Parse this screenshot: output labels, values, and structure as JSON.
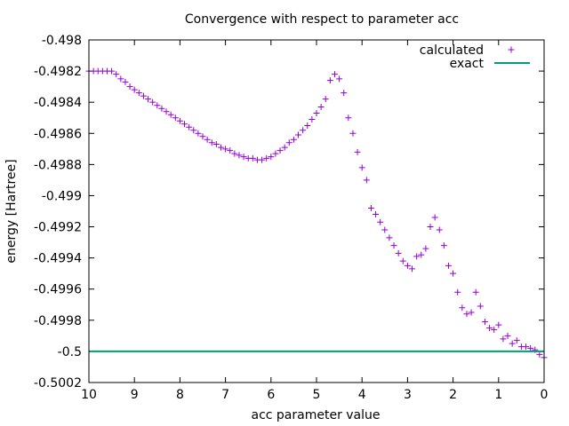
{
  "chart_data": {
    "type": "scatter",
    "title": "Convergence with respect to parameter acc",
    "xlabel": "acc parameter value",
    "ylabel": "energy [Hartree]",
    "xlim": [
      10,
      0
    ],
    "ylim": [
      -0.5002,
      -0.498
    ],
    "x_reversed": true,
    "x_ticks": [
      10,
      9,
      8,
      7,
      6,
      5,
      4,
      3,
      2,
      1,
      0
    ],
    "x_tick_labels": [
      "10",
      "9",
      "8",
      "7",
      "6",
      "5",
      "4",
      "3",
      "2",
      "1",
      "0"
    ],
    "y_ticks": [
      -0.498,
      -0.4982,
      -0.4984,
      -0.4986,
      -0.4988,
      -0.499,
      -0.4992,
      -0.4994,
      -0.4996,
      -0.4998,
      -0.5,
      -0.5002
    ],
    "y_tick_labels": [
      "-0.498",
      "-0.4982",
      "-0.4984",
      "-0.4986",
      "-0.4988",
      "-0.499",
      "-0.4992",
      "-0.4994",
      "-0.4996",
      "-0.4998",
      "-0.5",
      "-0.5002"
    ],
    "grid": false,
    "legend_position": "top-right",
    "series": [
      {
        "name": "calculated",
        "marker": "plus",
        "color": "#9400d3",
        "x": [
          10.0,
          9.9,
          9.8,
          9.7,
          9.6,
          9.5,
          9.4,
          9.3,
          9.2,
          9.1,
          9.0,
          8.9,
          8.8,
          8.7,
          8.6,
          8.5,
          8.4,
          8.3,
          8.2,
          8.1,
          8.0,
          7.9,
          7.8,
          7.7,
          7.6,
          7.5,
          7.4,
          7.3,
          7.2,
          7.1,
          7.0,
          6.9,
          6.8,
          6.7,
          6.6,
          6.5,
          6.4,
          6.3,
          6.2,
          6.1,
          6.0,
          5.9,
          5.8,
          5.7,
          5.6,
          5.5,
          5.4,
          5.3,
          5.2,
          5.1,
          5.0,
          4.9,
          4.8,
          4.7,
          4.6,
          4.5,
          4.4,
          4.3,
          4.2,
          4.1,
          4.0,
          3.9,
          3.8,
          3.7,
          3.6,
          3.5,
          3.4,
          3.3,
          3.2,
          3.1,
          3.0,
          2.9,
          2.8,
          2.7,
          2.6,
          2.5,
          2.4,
          2.3,
          2.2,
          2.1,
          2.0,
          1.9,
          1.8,
          1.7,
          1.6,
          1.5,
          1.4,
          1.3,
          1.2,
          1.1,
          1.0,
          0.9,
          0.8,
          0.7,
          0.6,
          0.5,
          0.4,
          0.3,
          0.2,
          0.1,
          0.0
        ],
        "y": [
          -0.4982,
          -0.4982,
          -0.4982,
          -0.4982,
          -0.4982,
          -0.4982,
          -0.49822,
          -0.49825,
          -0.49827,
          -0.4983,
          -0.49832,
          -0.49834,
          -0.49836,
          -0.49838,
          -0.4984,
          -0.49842,
          -0.49844,
          -0.49846,
          -0.49848,
          -0.4985,
          -0.49852,
          -0.49854,
          -0.49856,
          -0.49858,
          -0.4986,
          -0.49862,
          -0.49864,
          -0.49866,
          -0.49867,
          -0.49869,
          -0.4987,
          -0.49871,
          -0.49873,
          -0.49874,
          -0.49875,
          -0.49876,
          -0.49876,
          -0.49877,
          -0.49877,
          -0.49876,
          -0.49875,
          -0.49873,
          -0.49871,
          -0.49869,
          -0.49866,
          -0.49864,
          -0.49861,
          -0.49858,
          -0.49855,
          -0.49851,
          -0.49847,
          -0.49843,
          -0.49838,
          -0.49826,
          -0.49822,
          -0.49825,
          -0.49834,
          -0.4985,
          -0.4986,
          -0.49872,
          -0.49882,
          -0.4989,
          -0.49908,
          -0.49912,
          -0.49917,
          -0.49922,
          -0.49927,
          -0.49932,
          -0.49937,
          -0.49942,
          -0.49945,
          -0.49947,
          -0.49939,
          -0.49938,
          -0.49934,
          -0.4992,
          -0.49914,
          -0.49922,
          -0.49932,
          -0.49945,
          -0.4995,
          -0.49962,
          -0.49972,
          -0.49976,
          -0.49975,
          -0.49962,
          -0.49971,
          -0.49981,
          -0.49985,
          -0.49986,
          -0.49983,
          -0.49992,
          -0.4999,
          -0.49995,
          -0.49993,
          -0.49997,
          -0.49997,
          -0.49998,
          -0.49999,
          -0.50002,
          -0.50004
        ]
      },
      {
        "name": "exact",
        "marker": "line",
        "color": "#009e73",
        "x": [
          10,
          0
        ],
        "y": [
          -0.5,
          -0.5
        ]
      }
    ]
  }
}
